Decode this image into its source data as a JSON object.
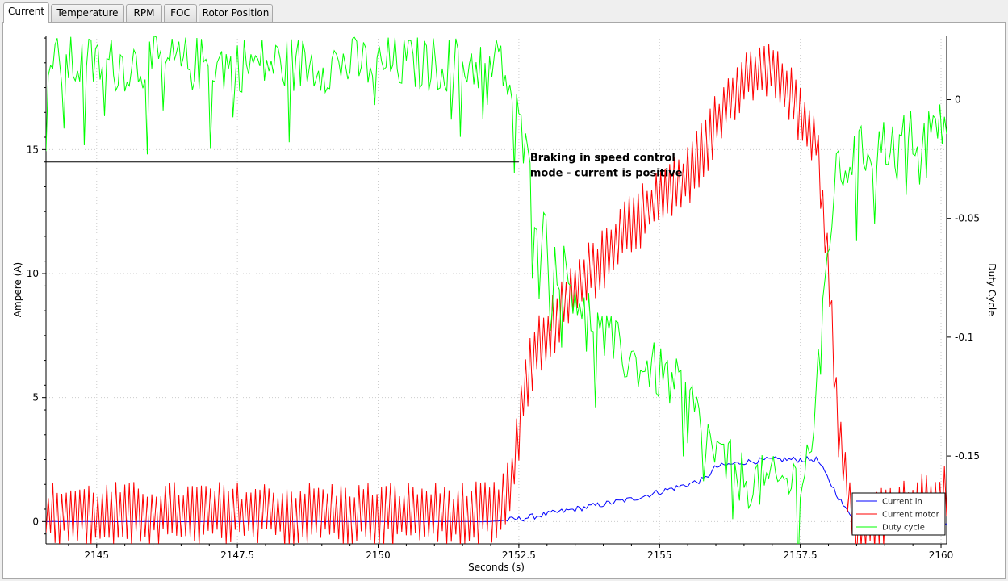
{
  "tabs": [
    {
      "label": "Current",
      "active": true
    },
    {
      "label": "Temperature",
      "active": false
    },
    {
      "label": "RPM",
      "active": false
    },
    {
      "label": "FOC",
      "active": false
    },
    {
      "label": "Rotor Position",
      "active": false
    }
  ],
  "chart_data": {
    "type": "line",
    "xlabel": "Seconds (s)",
    "ylabel": "Ampere (A)",
    "y2label": "Duty Cycle",
    "xlim": [
      2144.1,
      2160.1
    ],
    "ylim": [
      -0.9,
      19.6
    ],
    "y2lim": [
      -0.187,
      0.027
    ],
    "x_ticks": [
      2145,
      2147.5,
      2150,
      2152.5,
      2155,
      2157.5,
      2160
    ],
    "x_tick_labels": [
      "2145",
      "2147.5",
      "2150",
      "2152.5",
      "2155",
      "2157.5",
      "2160"
    ],
    "y_ticks": [
      0,
      5,
      10,
      15
    ],
    "y_tick_labels": [
      "0",
      "5",
      "10",
      "15"
    ],
    "y2_ticks": [
      0,
      -0.05,
      -0.1,
      -0.15
    ],
    "y2_tick_labels": [
      "0",
      "-0.05",
      "-0.1",
      "-0.15"
    ],
    "grid": true,
    "legend_position": "bottom-right",
    "annotation": {
      "lines": [
        "Braking in speed control",
        "mode - current is positive"
      ],
      "x": 2152.7,
      "y": 14.5,
      "line_x_start": 2144.1
    },
    "series": [
      {
        "name": "Current in",
        "color": "#0000ff",
        "axis": "left",
        "noise": 0.08,
        "x": [
          2144.1,
          2152.0,
          2152.5,
          2153.0,
          2153.5,
          2154.0,
          2154.5,
          2155.0,
          2155.5,
          2155.8,
          2156.0,
          2156.5,
          2157.0,
          2157.5,
          2157.8,
          2158.0,
          2158.3,
          2158.6,
          2159.0,
          2160.1
        ],
        "y": [
          0.0,
          0.0,
          0.1,
          0.3,
          0.5,
          0.7,
          0.9,
          1.2,
          1.5,
          1.7,
          2.2,
          2.4,
          2.5,
          2.5,
          2.5,
          1.7,
          0.5,
          -0.1,
          -0.1,
          -0.1
        ]
      },
      {
        "name": "Current motor",
        "color": "#ff0000",
        "axis": "left",
        "noise": 1.2,
        "x": [
          2144.1,
          2152.0,
          2152.2,
          2152.4,
          2152.6,
          2152.8,
          2153.0,
          2153.5,
          2154.0,
          2154.5,
          2155.0,
          2155.5,
          2156.0,
          2156.5,
          2157.0,
          2157.5,
          2157.8,
          2158.0,
          2158.2,
          2158.5,
          2159.0,
          2160.1
        ],
        "y": [
          0.3,
          0.3,
          0.5,
          2.0,
          5.5,
          6.8,
          7.5,
          9.5,
          10.5,
          12.0,
          13.0,
          13.8,
          16.0,
          18.0,
          18.3,
          16.5,
          15.5,
          10.0,
          3.0,
          -0.4,
          0.3,
          1.0
        ]
      },
      {
        "name": "Duty cycle",
        "color": "#00ff00",
        "axis": "right",
        "noise": 0.012,
        "x": [
          2144.1,
          2152.2,
          2152.5,
          2152.8,
          2153.0,
          2153.5,
          2154.0,
          2154.5,
          2155.0,
          2155.5,
          2156.0,
          2156.5,
          2157.0,
          2157.5,
          2157.7,
          2157.9,
          2158.1,
          2158.4,
          2158.8,
          2159.5,
          2160.1
        ],
        "y": [
          0.015,
          0.015,
          -0.01,
          -0.045,
          -0.06,
          -0.08,
          -0.1,
          -0.11,
          -0.115,
          -0.125,
          -0.15,
          -0.16,
          -0.162,
          -0.16,
          -0.145,
          -0.09,
          -0.035,
          -0.025,
          -0.02,
          -0.015,
          -0.01
        ]
      }
    ]
  }
}
